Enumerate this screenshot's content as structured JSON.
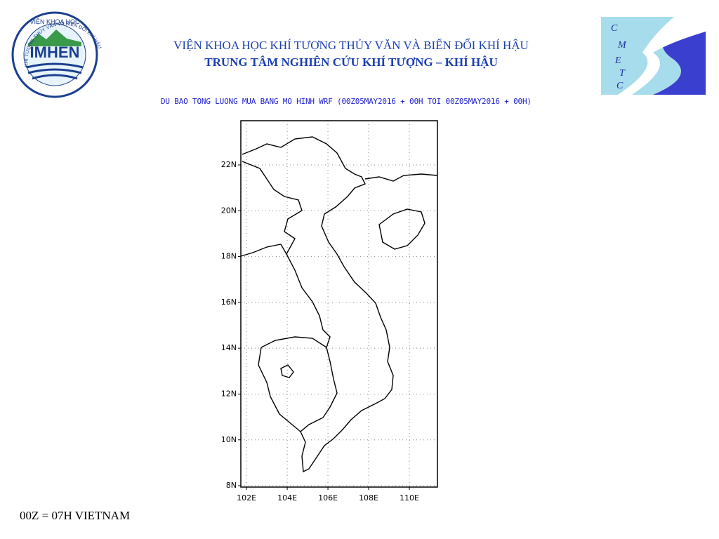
{
  "header": {
    "title": "VIỆN KHOA HỌC KHÍ TƯỢNG THỦY VĂN VÀ BIẾN ĐỔI KHÍ HẬU",
    "subtitle": "TRUNG TÂM NGHIÊN CỨU KHÍ TƯỢNG – KHÍ HẬU"
  },
  "logo_left": {
    "name": "IMHEN",
    "top_text": "VIỆN KHOA HỌC",
    "ring_text": "KHÍ TƯỢNG THỦY VĂN VÀ BIẾN ĐỔI KHÍ HẬU"
  },
  "logo_right": {
    "letters": [
      "C",
      "M",
      "E",
      "T",
      "C"
    ]
  },
  "map": {
    "title": "DU BAO TONG LUONG MUA BANG MO HINH WRF (00Z05MAY2016 + 00H TOI 00Z05MAY2016 + 00H)",
    "xlim": [
      101.72,
      111.38
    ],
    "ylim": [
      7.94,
      23.93
    ],
    "xticks": [
      {
        "value": 102,
        "label": "102E"
      },
      {
        "value": 104,
        "label": "104E"
      },
      {
        "value": 106,
        "label": "106E"
      },
      {
        "value": 108,
        "label": "108E"
      },
      {
        "value": 110,
        "label": "110E"
      }
    ],
    "yticks": [
      {
        "value": 8,
        "label": "8N"
      },
      {
        "value": 10,
        "label": "10N"
      },
      {
        "value": 12,
        "label": "12N"
      },
      {
        "value": 14,
        "label": "14N"
      },
      {
        "value": 16,
        "label": "16N"
      },
      {
        "value": 18,
        "label": "18N"
      },
      {
        "value": 20,
        "label": "20N"
      },
      {
        "value": 22,
        "label": "22N"
      }
    ],
    "grid": true
  },
  "footer": {
    "note": "00Z = 07H VIETNAM"
  }
}
